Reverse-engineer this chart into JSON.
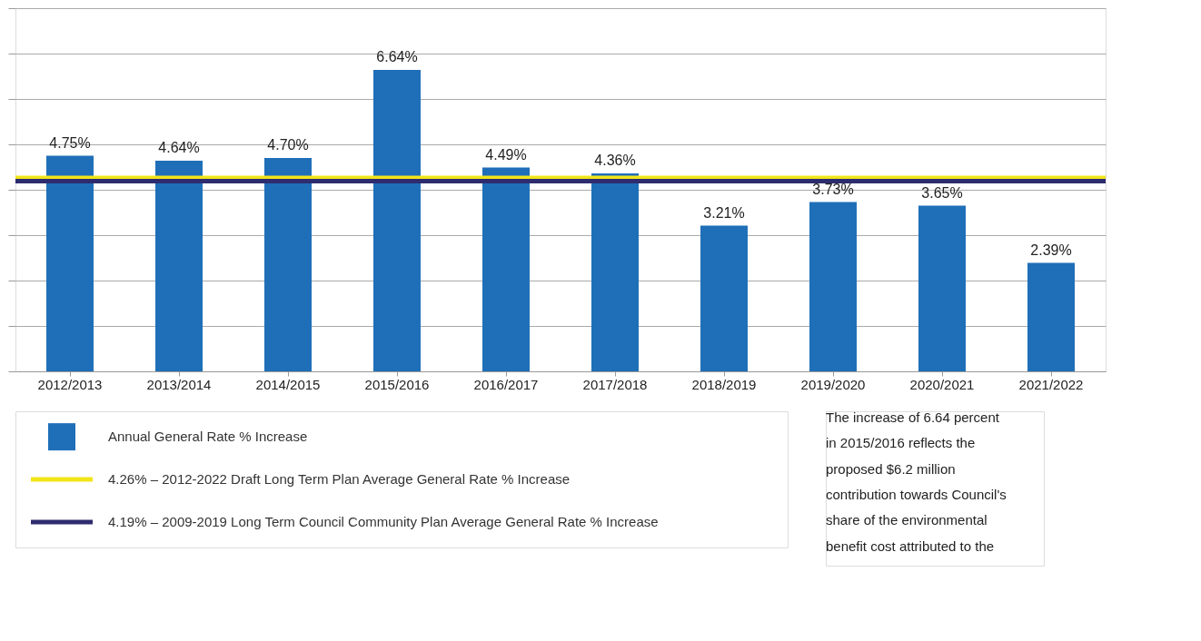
{
  "chart_data": {
    "type": "bar",
    "categories": [
      "2012/2013",
      "2013/2014",
      "2014/2015",
      "2015/2016",
      "2016/2017",
      "2017/2018",
      "2018/2019",
      "2019/2020",
      "2020/2021",
      "2021/2022"
    ],
    "series": [
      {
        "name": "Annual General Rate % Increase",
        "color": "#1f6fb8",
        "values": [
          4.75,
          4.64,
          4.7,
          6.64,
          4.49,
          4.36,
          3.21,
          3.73,
          3.65,
          2.39
        ],
        "value_labels": [
          "4.75%",
          "4.64%",
          "4.70%",
          "6.64%",
          "4.49%",
          "4.36%",
          "3.21%",
          "3.73%",
          "3.65%",
          "2.39%"
        ]
      }
    ],
    "tick_labels": "x",
    "grid": "y",
    "legend": "bottom left",
    "ref_lines": [
      {
        "axis": "y",
        "value": 4.26,
        "label": "4.26% – 2012-2022 Draft Long Term Plan Average General Rate % Increase",
        "color": "#f2e51a"
      },
      {
        "axis": "y",
        "value": 4.19,
        "label": "4.19% – 2009-2019 Long Term Council Community Plan Average General Rate % Increase",
        "color": "#2e2c6e"
      }
    ],
    "annotations": [
      "The increase of 6.64 percent in 2015/2016 reflects the proposed $6.2 million contribution towards Council's share of the environmental benefit cost attributed to the"
    ]
  }
}
